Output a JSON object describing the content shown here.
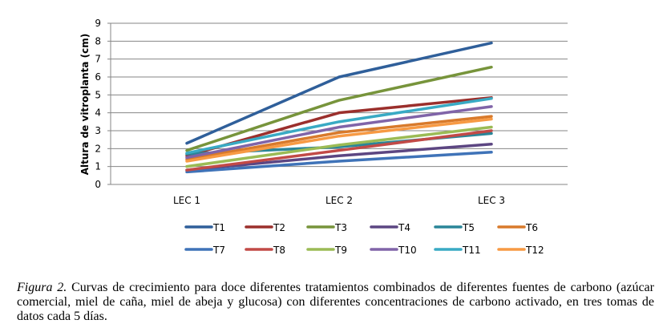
{
  "chart_data": {
    "type": "line",
    "title": "",
    "xlabel": "",
    "ylabel": "Altura de vitroplanta (cm)",
    "ylim": [
      0,
      9
    ],
    "yticks": [
      "0",
      "1",
      "2",
      "3",
      "4",
      "5",
      "6",
      "7",
      "8",
      "9"
    ],
    "categories": [
      "LEC 1",
      "LEC 2",
      "LEC 3"
    ],
    "grid": true,
    "legend_position": "bottom",
    "series": [
      {
        "name": "T1",
        "color": "#2f5f9a",
        "values": [
          2.3,
          6.0,
          7.9
        ]
      },
      {
        "name": "T2",
        "color": "#9b2f2c",
        "values": [
          1.6,
          4.0,
          4.85
        ]
      },
      {
        "name": "T3",
        "color": "#77943b",
        "values": [
          1.9,
          4.7,
          6.55
        ]
      },
      {
        "name": "T4",
        "color": "#5c4682",
        "values": [
          0.8,
          1.6,
          2.25
        ]
      },
      {
        "name": "T5",
        "color": "#2a8598",
        "values": [
          1.7,
          2.1,
          2.85
        ]
      },
      {
        "name": "T6",
        "color": "#d87a2b",
        "values": [
          1.4,
          2.9,
          3.8
        ]
      },
      {
        "name": "T7",
        "color": "#3f73b8",
        "values": [
          0.7,
          1.3,
          1.8
        ]
      },
      {
        "name": "T8",
        "color": "#c24a47",
        "values": [
          0.8,
          1.9,
          3.0
        ]
      },
      {
        "name": "T9",
        "color": "#9bbb55",
        "values": [
          1.0,
          2.2,
          3.2
        ]
      },
      {
        "name": "T10",
        "color": "#8064a8",
        "values": [
          1.5,
          3.2,
          4.35
        ]
      },
      {
        "name": "T11",
        "color": "#39aac4",
        "values": [
          1.75,
          3.5,
          4.8
        ]
      },
      {
        "name": "T12",
        "color": "#f79a44",
        "values": [
          1.3,
          2.7,
          3.65
        ]
      }
    ]
  },
  "caption": {
    "label": "Figura 2.",
    "text": " Curvas de crecimiento para doce diferentes tratamientos combinados de diferentes fuentes de carbono (azúcar comercial, miel de caña, miel de abeja y glucosa) con diferentes concentraciones de carbono activado, en tres tomas de datos cada 5 días."
  }
}
